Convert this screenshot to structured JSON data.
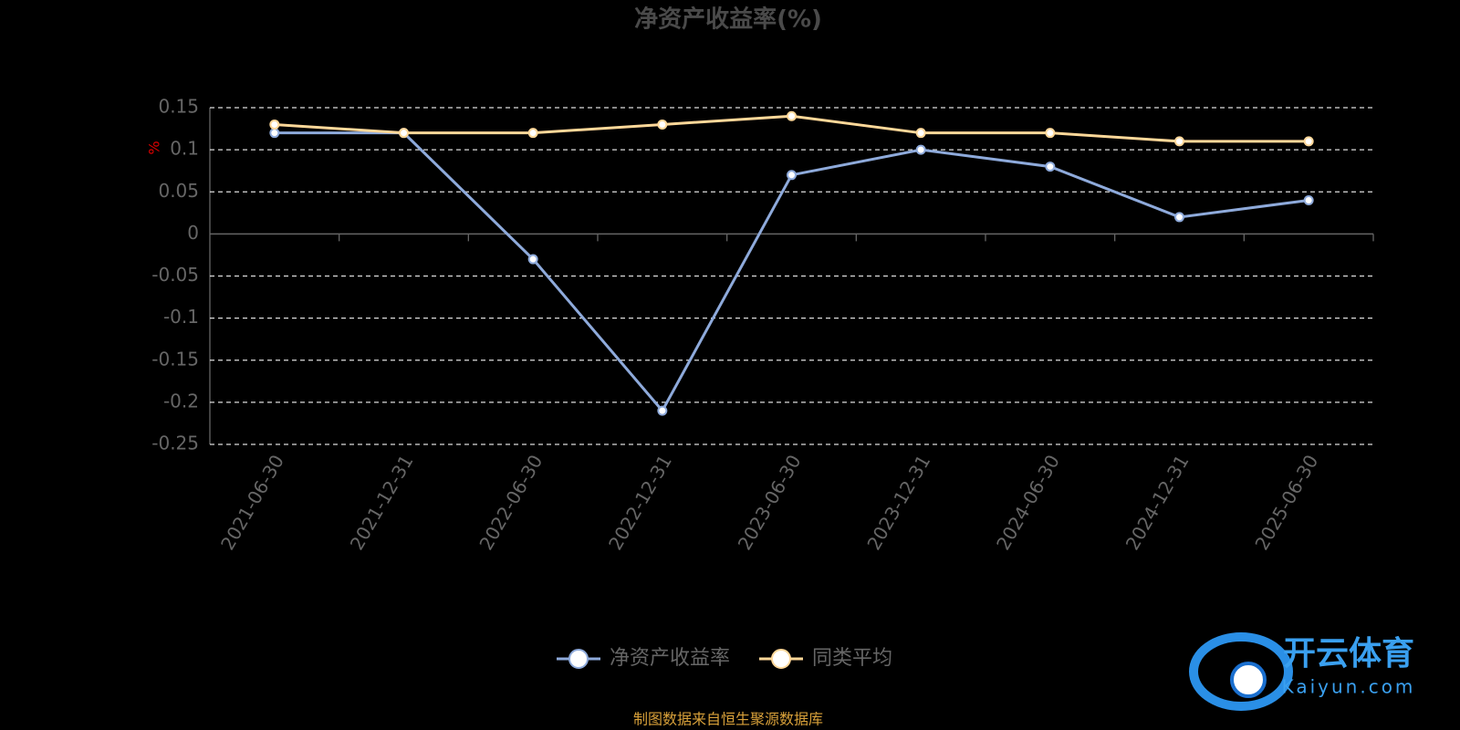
{
  "chart_data": {
    "type": "line",
    "title": "净资产收益率(%)",
    "y_label": "%",
    "categories": [
      "2021-06-30",
      "2021-12-31",
      "2022-06-30",
      "2022-12-31",
      "2023-06-30",
      "2023-12-31",
      "2024-06-30",
      "2024-12-31",
      "2025-06-30"
    ],
    "series": [
      {
        "name": "净资产收益率",
        "color": "#8eaadb",
        "values": [
          0.12,
          0.12,
          -0.03,
          -0.21,
          0.07,
          0.1,
          0.08,
          0.02,
          0.04
        ]
      },
      {
        "name": "同类平均",
        "color": "#ffd899",
        "values": [
          0.13,
          0.12,
          0.12,
          0.13,
          0.14,
          0.12,
          0.12,
          0.11,
          0.11
        ]
      }
    ],
    "ylim": [
      -0.25,
      0.15
    ],
    "yticks": [
      0.15,
      0.1,
      0.05,
      0,
      -0.05,
      -0.1,
      -0.15,
      -0.2,
      -0.25
    ],
    "grid": true,
    "legend": "bottom",
    "source_note": "制图数据来自恒生聚源数据库",
    "watermark": {
      "text": "开云体育",
      "url": "Kaiyun.com"
    }
  }
}
